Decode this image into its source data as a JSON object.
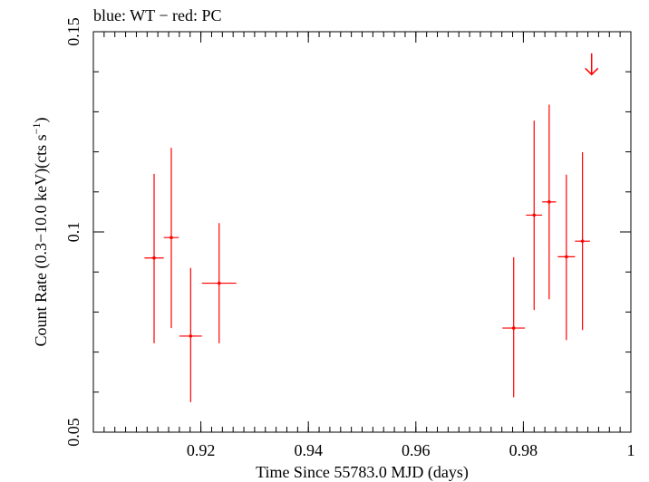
{
  "chart_data": {
    "type": "scatter",
    "title": "blue: WT − red: PC",
    "xlabel": "Time Since 55783.0 MJD (days)",
    "ylabel_main": "Count Rate (0.3−10.0 keV)(cts s",
    "ylabel_sup": "−1",
    "ylabel_end": ")",
    "xlim": [
      0.9,
      1.0
    ],
    "ylim": [
      0.05,
      0.15
    ],
    "x_ticks": [
      {
        "value": 0.92,
        "label": "0.92"
      },
      {
        "value": 0.94,
        "label": "0.94"
      },
      {
        "value": 0.96,
        "label": "0.96"
      },
      {
        "value": 0.98,
        "label": "0.98"
      },
      {
        "value": 1.0,
        "label": "1"
      }
    ],
    "y_ticks": [
      {
        "value": 0.05,
        "label": "0.05"
      },
      {
        "value": 0.1,
        "label": "0.1"
      },
      {
        "value": 0.15,
        "label": "0.15"
      }
    ],
    "x_minor_step": 0.002,
    "y_minor_step": 0.01,
    "grid": false,
    "color": "#ff0000",
    "series": [
      {
        "points": [
          {
            "x": 0.9113,
            "xerr": 0.0018,
            "y": 0.0935,
            "ylo": 0.0722,
            "yhi": 0.1145
          },
          {
            "x": 0.9145,
            "xerr": 0.0014,
            "y": 0.0986,
            "ylo": 0.076,
            "yhi": 0.121
          },
          {
            "x": 0.9181,
            "xerr": 0.0021,
            "y": 0.074,
            "ylo": 0.0575,
            "yhi": 0.091
          },
          {
            "x": 0.9234,
            "xerr": 0.0032,
            "y": 0.0872,
            "ylo": 0.0722,
            "yhi": 0.1022
          },
          {
            "x": 0.9782,
            "xerr": 0.0021,
            "y": 0.076,
            "ylo": 0.0587,
            "yhi": 0.0937
          },
          {
            "x": 0.982,
            "xerr": 0.0015,
            "y": 0.1042,
            "ylo": 0.0805,
            "yhi": 0.1278
          },
          {
            "x": 0.9848,
            "xerr": 0.0013,
            "y": 0.1075,
            "ylo": 0.0832,
            "yhi": 0.1318
          },
          {
            "x": 0.988,
            "xerr": 0.0016,
            "y": 0.0938,
            "ylo": 0.073,
            "yhi": 0.1143
          },
          {
            "x": 0.991,
            "xerr": 0.0014,
            "y": 0.0977,
            "ylo": 0.0755,
            "yhi": 0.1199
          }
        ]
      }
    ],
    "upper_limits": [
      {
        "x": 0.9927,
        "y": 0.1393,
        "y_top": 0.1446
      }
    ]
  }
}
